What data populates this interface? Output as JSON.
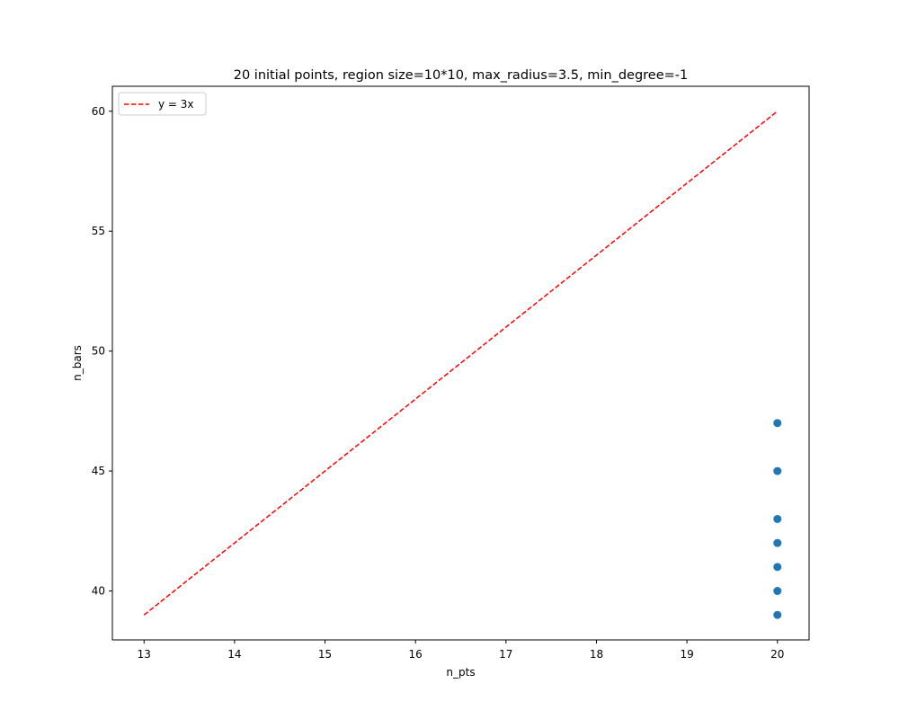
{
  "chart_data": {
    "type": "scatter",
    "title": "20 initial points, region size=10*10, max_radius=3.5, min_degree=-1",
    "xlabel": "n_pts",
    "ylabel": "n_bars",
    "xlim": [
      12.65,
      20.35
    ],
    "ylim": [
      37.96,
      61.04
    ],
    "xticks": [
      13,
      14,
      15,
      16,
      17,
      18,
      19,
      20
    ],
    "yticks": [
      40,
      45,
      50,
      55,
      60
    ],
    "grid": false,
    "legend_position": "top-left",
    "series": [
      {
        "type": "scatter",
        "color": "#1f77b4",
        "points": [
          {
            "x": 20,
            "y": 47
          },
          {
            "x": 20,
            "y": 45
          },
          {
            "x": 20,
            "y": 43
          },
          {
            "x": 20,
            "y": 42
          },
          {
            "x": 20,
            "y": 41
          },
          {
            "x": 20,
            "y": 40
          },
          {
            "x": 20,
            "y": 39
          }
        ]
      },
      {
        "type": "line",
        "name": "y = 3x",
        "color": "#ff0000",
        "dash": "dashed",
        "points": [
          {
            "x": 13,
            "y": 39
          },
          {
            "x": 20,
            "y": 60
          }
        ]
      }
    ]
  }
}
